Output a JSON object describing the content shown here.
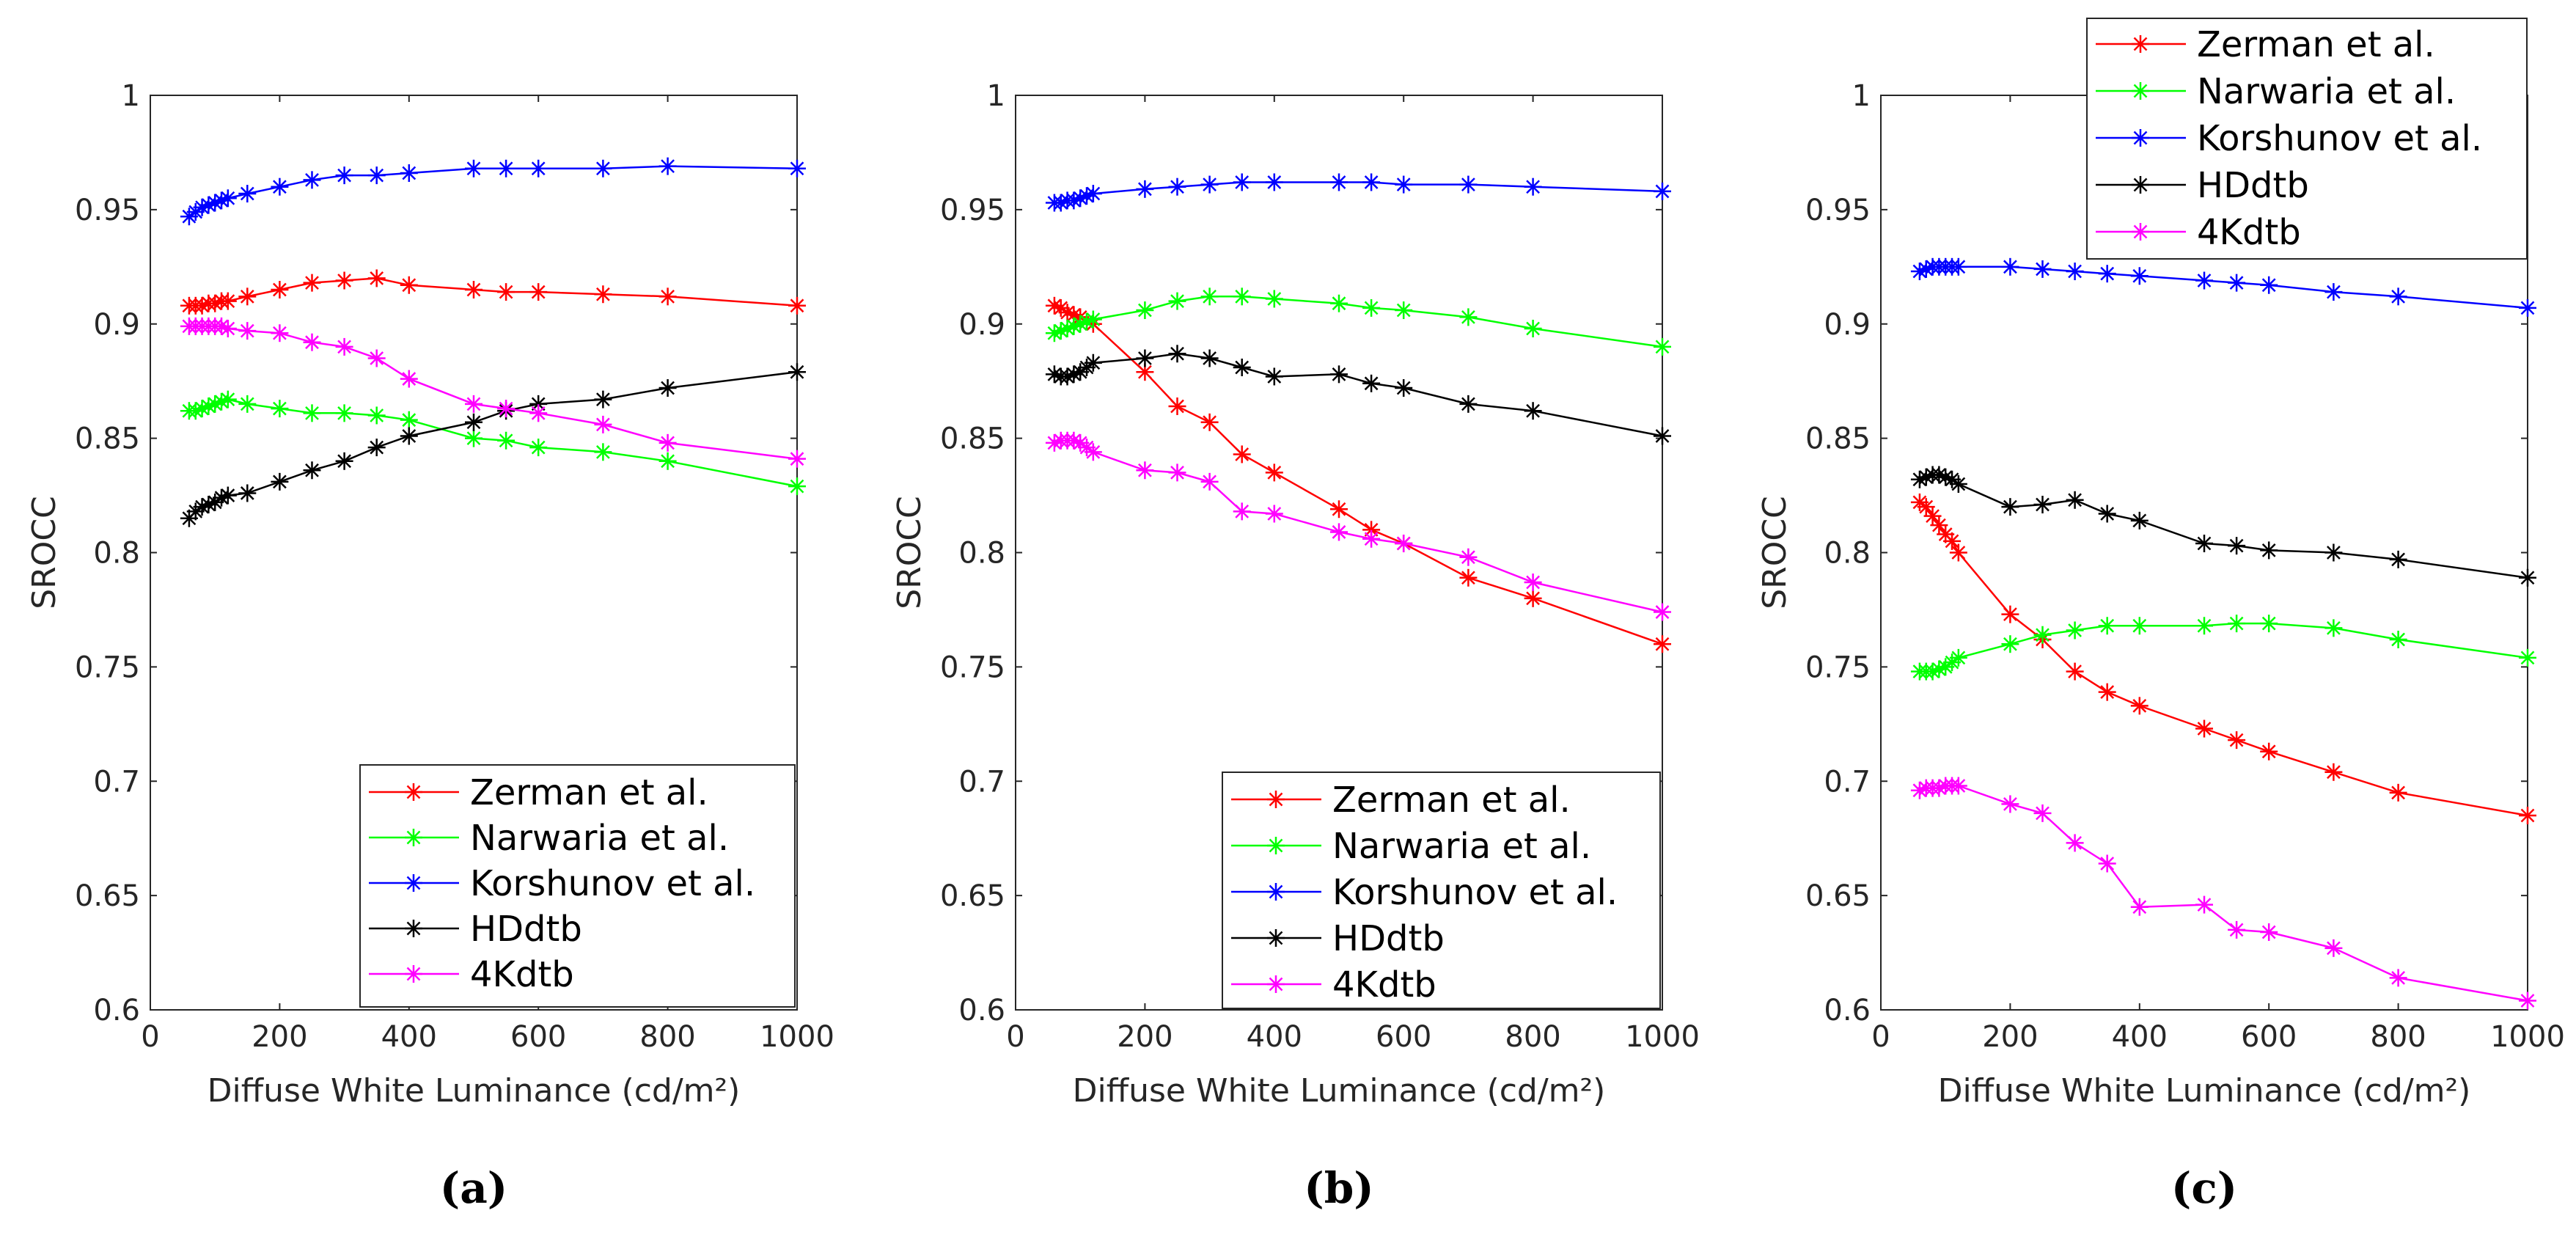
{
  "chart_data": [
    {
      "type": "line",
      "panel": "a",
      "caption": "(a)",
      "xlabel": "Diffuse White Luminance (cd/m²)",
      "ylabel": "SROCC",
      "xlim": [
        0,
        1000
      ],
      "ylim": [
        0.6,
        1
      ],
      "xticks": [
        0,
        200,
        400,
        600,
        800,
        1000
      ],
      "yticks": [
        0.6,
        0.65,
        0.7,
        0.75,
        0.8,
        0.85,
        0.9,
        0.95,
        1
      ],
      "legend_position": "bottom-right",
      "series": [
        {
          "name": "Zerman et al.",
          "color": "#ff0000",
          "x": [
            60,
            70,
            80,
            90,
            100,
            110,
            120,
            150,
            200,
            250,
            300,
            350,
            400,
            500,
            550,
            600,
            700,
            800,
            1000
          ],
          "y": [
            0.908,
            0.908,
            0.908,
            0.909,
            0.909,
            0.91,
            0.91,
            0.912,
            0.915,
            0.918,
            0.919,
            0.92,
            0.917,
            0.915,
            0.914,
            0.914,
            0.913,
            0.912,
            0.908
          ]
        },
        {
          "name": "Narwaria et al.",
          "color": "#00ff00",
          "x": [
            60,
            70,
            80,
            90,
            100,
            110,
            120,
            150,
            200,
            250,
            300,
            350,
            400,
            500,
            550,
            600,
            700,
            800,
            1000
          ],
          "y": [
            0.862,
            0.862,
            0.863,
            0.864,
            0.865,
            0.866,
            0.867,
            0.865,
            0.863,
            0.861,
            0.861,
            0.86,
            0.858,
            0.85,
            0.849,
            0.846,
            0.844,
            0.84,
            0.829
          ]
        },
        {
          "name": "Korshunov et al.",
          "color": "#0000ff",
          "x": [
            60,
            70,
            80,
            90,
            100,
            110,
            120,
            150,
            200,
            250,
            300,
            350,
            400,
            500,
            550,
            600,
            700,
            800,
            1000
          ],
          "y": [
            0.947,
            0.949,
            0.951,
            0.952,
            0.953,
            0.954,
            0.955,
            0.957,
            0.96,
            0.963,
            0.965,
            0.965,
            0.966,
            0.968,
            0.968,
            0.968,
            0.968,
            0.969,
            0.968
          ]
        },
        {
          "name": "HDdtb",
          "color": "#000000",
          "x": [
            60,
            70,
            80,
            90,
            100,
            110,
            120,
            150,
            200,
            250,
            300,
            350,
            400,
            500,
            550,
            600,
            700,
            800,
            1000
          ],
          "y": [
            0.815,
            0.818,
            0.82,
            0.821,
            0.822,
            0.824,
            0.825,
            0.826,
            0.831,
            0.836,
            0.84,
            0.846,
            0.851,
            0.857,
            0.862,
            0.865,
            0.867,
            0.872,
            0.879
          ]
        },
        {
          "name": "4Kdtb",
          "color": "#ff00ff",
          "x": [
            60,
            70,
            80,
            90,
            100,
            110,
            120,
            150,
            200,
            250,
            300,
            350,
            400,
            500,
            550,
            600,
            700,
            800,
            1000
          ],
          "y": [
            0.899,
            0.899,
            0.899,
            0.899,
            0.899,
            0.899,
            0.898,
            0.897,
            0.896,
            0.892,
            0.89,
            0.885,
            0.876,
            0.865,
            0.863,
            0.861,
            0.856,
            0.848,
            0.841
          ]
        }
      ]
    },
    {
      "type": "line",
      "panel": "b",
      "caption": "(b)",
      "xlabel": "Diffuse White Luminance (cd/m²)",
      "ylabel": "SROCC",
      "xlim": [
        0,
        1000
      ],
      "ylim": [
        0.6,
        1
      ],
      "xticks": [
        0,
        200,
        400,
        600,
        800,
        1000
      ],
      "yticks": [
        0.6,
        0.65,
        0.7,
        0.75,
        0.8,
        0.85,
        0.9,
        0.95,
        1
      ],
      "legend_position": "bottom-right",
      "series": [
        {
          "name": "Zerman et al.",
          "color": "#ff0000",
          "x": [
            60,
            70,
            80,
            90,
            100,
            110,
            120,
            200,
            250,
            300,
            350,
            400,
            500,
            550,
            600,
            700,
            800,
            1000
          ],
          "y": [
            0.908,
            0.907,
            0.905,
            0.904,
            0.903,
            0.901,
            0.9,
            0.879,
            0.864,
            0.857,
            0.843,
            0.835,
            0.819,
            0.81,
            0.804,
            0.789,
            0.78,
            0.76
          ]
        },
        {
          "name": "Narwaria et al.",
          "color": "#00ff00",
          "x": [
            60,
            70,
            80,
            90,
            100,
            110,
            120,
            200,
            250,
            300,
            350,
            400,
            500,
            550,
            600,
            700,
            800,
            1000
          ],
          "y": [
            0.896,
            0.897,
            0.898,
            0.899,
            0.9,
            0.901,
            0.902,
            0.906,
            0.91,
            0.912,
            0.912,
            0.911,
            0.909,
            0.907,
            0.906,
            0.903,
            0.898,
            0.89
          ]
        },
        {
          "name": "Korshunov et al.",
          "color": "#0000ff",
          "x": [
            60,
            70,
            80,
            90,
            100,
            110,
            120,
            200,
            250,
            300,
            350,
            400,
            500,
            550,
            600,
            700,
            800,
            1000
          ],
          "y": [
            0.953,
            0.953,
            0.954,
            0.954,
            0.955,
            0.956,
            0.957,
            0.959,
            0.96,
            0.961,
            0.962,
            0.962,
            0.962,
            0.962,
            0.961,
            0.961,
            0.96,
            0.958
          ]
        },
        {
          "name": "HDdtb",
          "color": "#000000",
          "x": [
            60,
            70,
            80,
            90,
            100,
            110,
            120,
            200,
            250,
            300,
            350,
            400,
            500,
            550,
            600,
            700,
            800,
            1000
          ],
          "y": [
            0.878,
            0.877,
            0.877,
            0.878,
            0.879,
            0.881,
            0.883,
            0.885,
            0.887,
            0.885,
            0.881,
            0.877,
            0.878,
            0.874,
            0.872,
            0.865,
            0.862,
            0.851
          ]
        },
        {
          "name": "4Kdtb",
          "color": "#ff00ff",
          "x": [
            60,
            70,
            80,
            90,
            100,
            110,
            120,
            200,
            250,
            300,
            350,
            400,
            500,
            550,
            600,
            700,
            800,
            1000
          ],
          "y": [
            0.848,
            0.849,
            0.849,
            0.849,
            0.848,
            0.846,
            0.844,
            0.836,
            0.835,
            0.831,
            0.818,
            0.817,
            0.809,
            0.806,
            0.804,
            0.798,
            0.787,
            0.774
          ]
        }
      ]
    },
    {
      "type": "line",
      "panel": "c",
      "caption": "(c)",
      "xlabel": "Diffuse White Luminance (cd/m²)",
      "ylabel": "SROCC",
      "xlim": [
        0,
        1000
      ],
      "ylim": [
        0.6,
        1
      ],
      "xticks": [
        0,
        200,
        400,
        600,
        800,
        1000
      ],
      "yticks": [
        0.6,
        0.65,
        0.7,
        0.75,
        0.8,
        0.85,
        0.9,
        0.95,
        1
      ],
      "legend_position": "top-right (outside above plot)",
      "series": [
        {
          "name": "Zerman et al.",
          "color": "#ff0000",
          "x": [
            60,
            70,
            80,
            90,
            100,
            110,
            120,
            200,
            250,
            300,
            350,
            400,
            500,
            550,
            600,
            700,
            800,
            1000
          ],
          "y": [
            0.822,
            0.82,
            0.816,
            0.812,
            0.808,
            0.805,
            0.8,
            0.773,
            0.762,
            0.748,
            0.739,
            0.733,
            0.723,
            0.718,
            0.713,
            0.704,
            0.695,
            0.685
          ]
        },
        {
          "name": "Narwaria et al.",
          "color": "#00ff00",
          "x": [
            60,
            70,
            80,
            90,
            100,
            110,
            120,
            200,
            250,
            300,
            350,
            400,
            500,
            550,
            600,
            700,
            800,
            1000
          ],
          "y": [
            0.748,
            0.748,
            0.748,
            0.749,
            0.75,
            0.752,
            0.754,
            0.76,
            0.764,
            0.766,
            0.768,
            0.768,
            0.768,
            0.769,
            0.769,
            0.767,
            0.762,
            0.754
          ]
        },
        {
          "name": "Korshunov et al.",
          "color": "#0000ff",
          "x": [
            60,
            70,
            80,
            90,
            100,
            110,
            120,
            200,
            250,
            300,
            350,
            400,
            500,
            550,
            600,
            700,
            800,
            1000
          ],
          "y": [
            0.923,
            0.924,
            0.925,
            0.925,
            0.925,
            0.925,
            0.925,
            0.925,
            0.924,
            0.923,
            0.922,
            0.921,
            0.919,
            0.918,
            0.917,
            0.914,
            0.912,
            0.907
          ]
        },
        {
          "name": "HDdtb",
          "color": "#000000",
          "x": [
            60,
            70,
            80,
            90,
            100,
            110,
            120,
            200,
            250,
            300,
            350,
            400,
            500,
            550,
            600,
            700,
            800,
            1000
          ],
          "y": [
            0.832,
            0.833,
            0.834,
            0.834,
            0.833,
            0.832,
            0.83,
            0.82,
            0.821,
            0.823,
            0.817,
            0.814,
            0.804,
            0.803,
            0.801,
            0.8,
            0.797,
            0.789
          ]
        },
        {
          "name": "4Kdtb",
          "color": "#ff00ff",
          "x": [
            60,
            70,
            80,
            90,
            100,
            110,
            120,
            200,
            250,
            300,
            350,
            400,
            500,
            550,
            600,
            700,
            800,
            1000
          ],
          "y": [
            0.696,
            0.697,
            0.697,
            0.697,
            0.698,
            0.698,
            0.698,
            0.69,
            0.686,
            0.673,
            0.664,
            0.645,
            0.646,
            0.635,
            0.634,
            0.627,
            0.614,
            0.604
          ]
        }
      ]
    }
  ]
}
